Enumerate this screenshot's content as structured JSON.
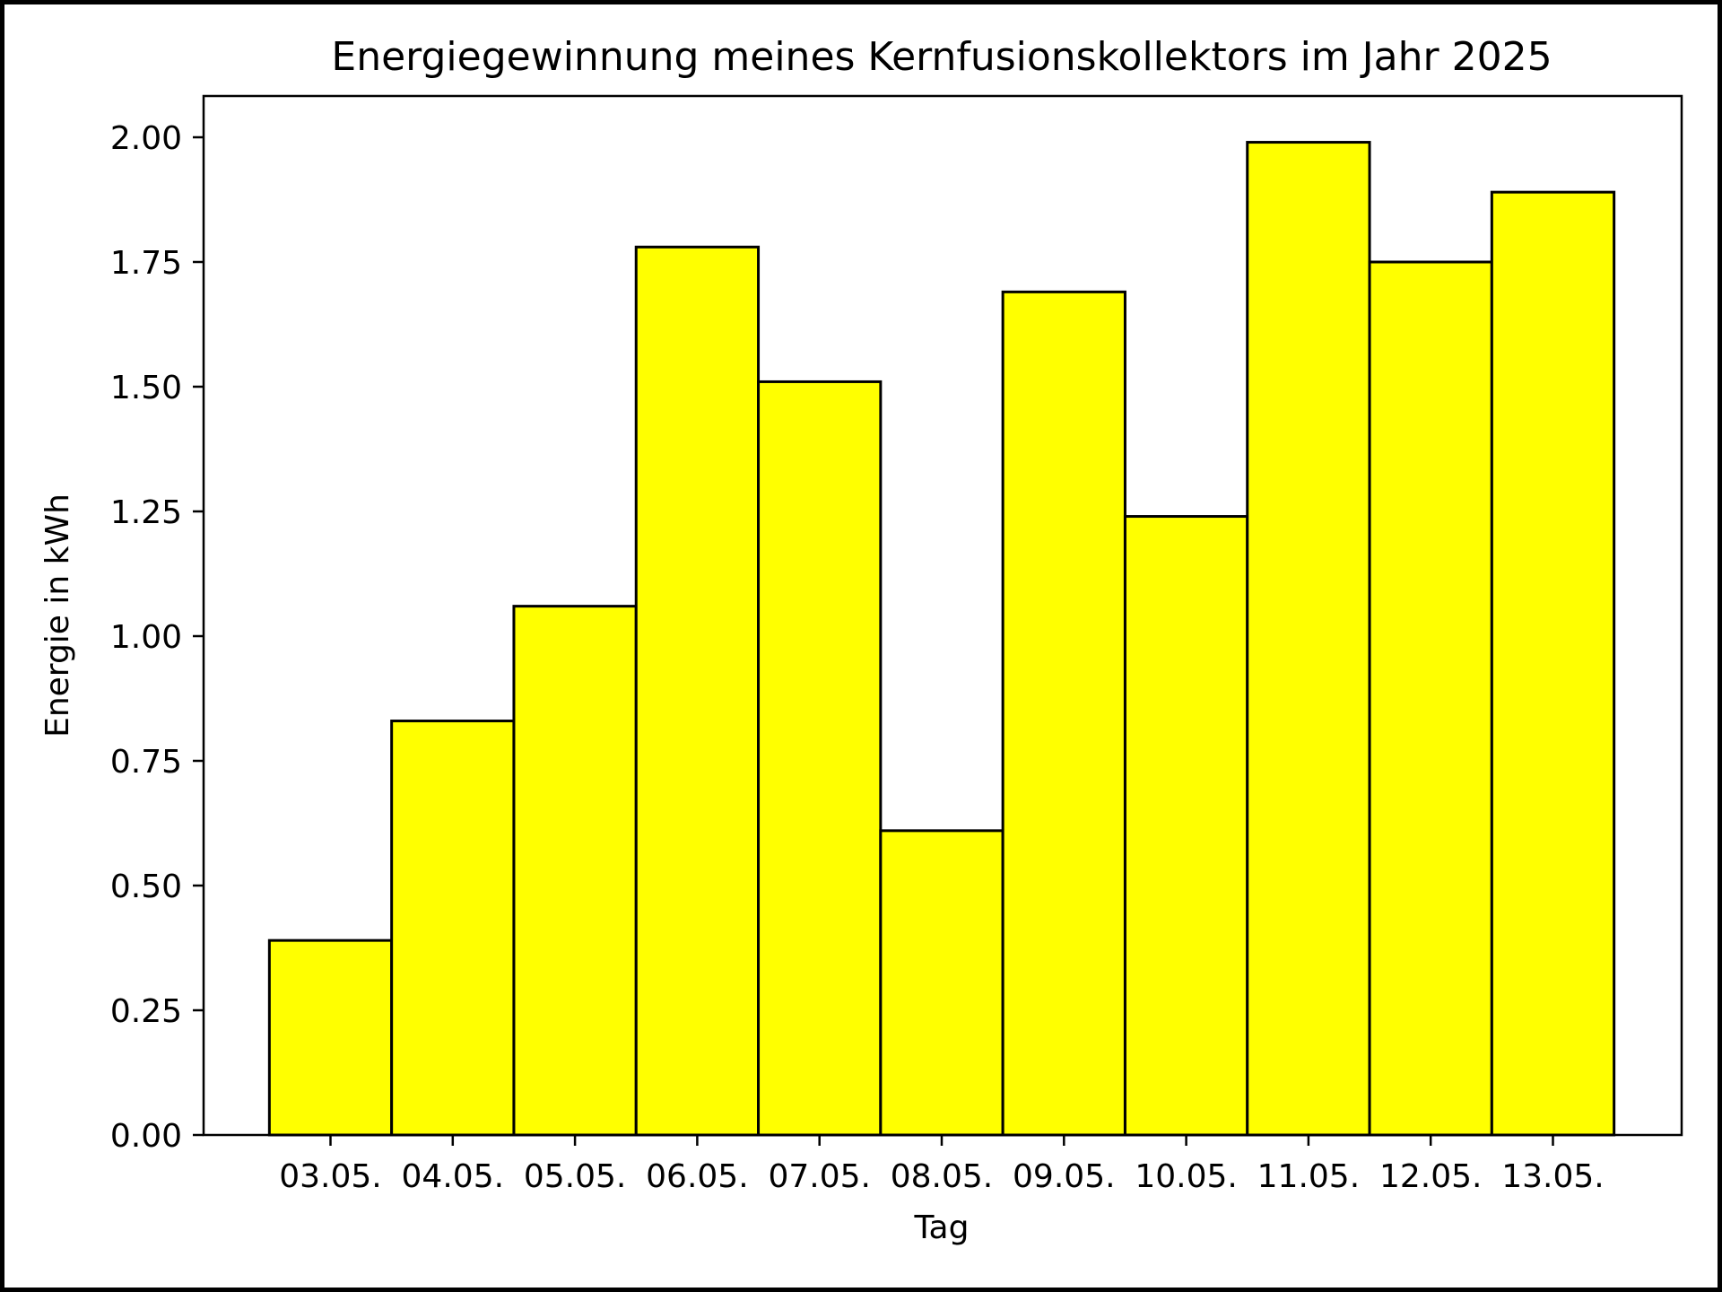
{
  "chart_data": {
    "type": "bar",
    "title": "Energiegewinnung meines Kernfusionskollektors im Jahr 2025",
    "xlabel": "Tag",
    "ylabel": "Energie in kWh",
    "categories": [
      "03.05.",
      "04.05.",
      "05.05.",
      "06.05.",
      "07.05.",
      "08.05.",
      "09.05.",
      "10.05.",
      "11.05.",
      "12.05.",
      "13.05."
    ],
    "values": [
      0.39,
      0.83,
      1.06,
      1.78,
      1.51,
      0.61,
      1.69,
      1.24,
      1.99,
      1.75,
      1.89
    ],
    "ylim": [
      0,
      2.08
    ],
    "yticks": [
      "0.00",
      "0.25",
      "0.50",
      "0.75",
      "1.00",
      "1.25",
      "1.50",
      "1.75",
      "2.00"
    ],
    "bar_color": "#ffff00",
    "edge_color": "#000000",
    "grid": false,
    "legend": "none"
  }
}
